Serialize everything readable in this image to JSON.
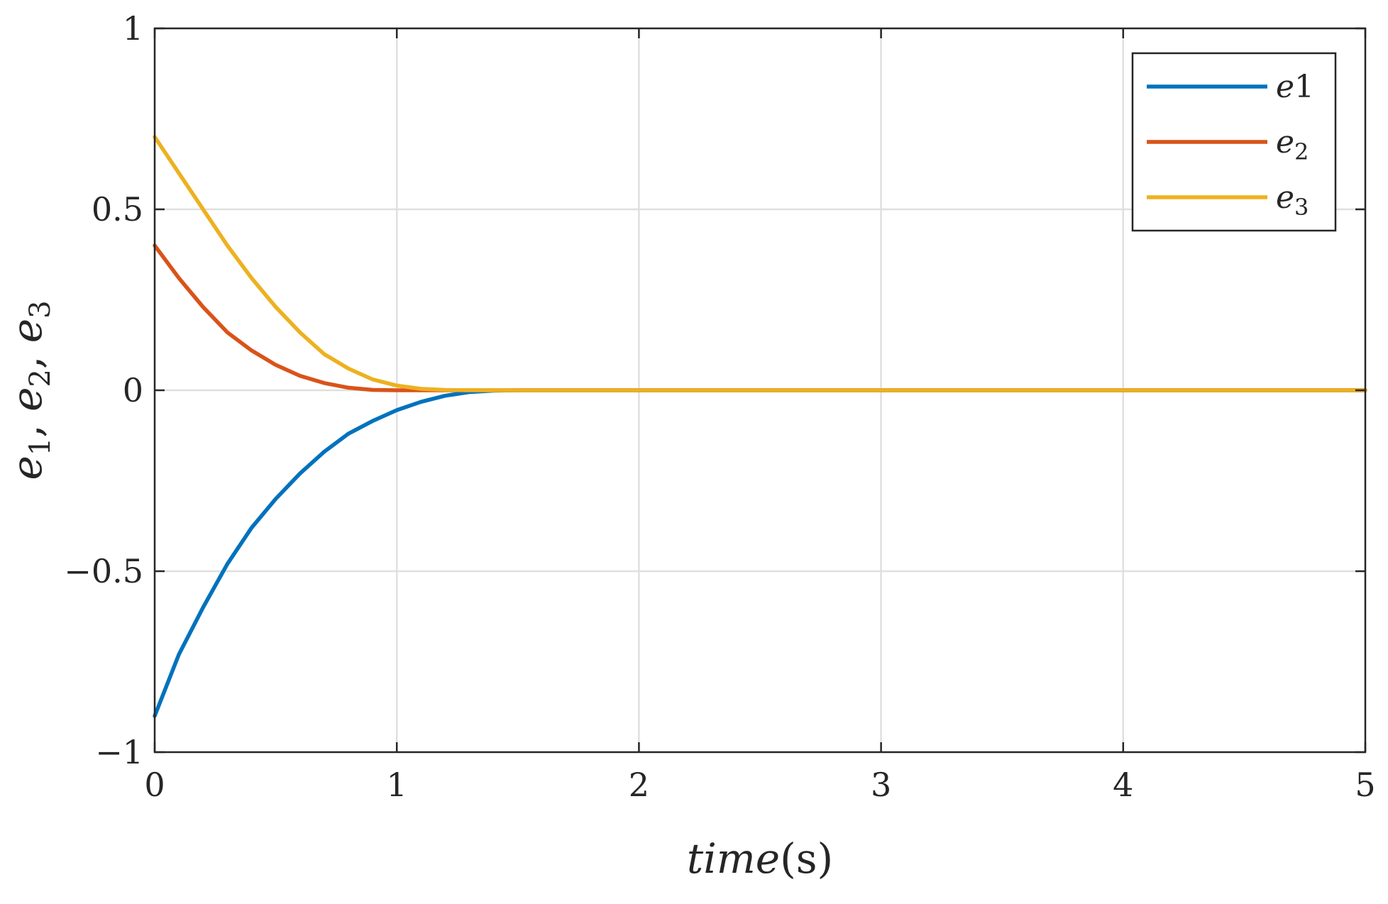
{
  "chart_data": {
    "type": "line",
    "xlabel": "time(s)",
    "xlabel_parts": {
      "italic": "time",
      "unit": "(s)"
    },
    "ylabel": "e1, e2, e3",
    "ylabel_parts": [
      {
        "base": "e",
        "sub": "1",
        "sep": ", "
      },
      {
        "base": "e",
        "sub": "2",
        "sep": ", "
      },
      {
        "base": "e",
        "sub": "3",
        "sep": ""
      }
    ],
    "xlim": [
      0,
      5
    ],
    "ylim": [
      -1,
      1
    ],
    "xticks": [
      0,
      1,
      2,
      3,
      4,
      5
    ],
    "xtick_labels": [
      "0",
      "1",
      "2",
      "3",
      "4",
      "5"
    ],
    "yticks": [
      -1,
      -0.5,
      0,
      0.5,
      1
    ],
    "ytick_labels": [
      "−1",
      "−0.5",
      "0",
      "0.5",
      "1"
    ],
    "grid": true,
    "legend_position": "top-right",
    "series": [
      {
        "name": "e1",
        "legend_label": {
          "base": "e",
          "rest": "1",
          "subscript": false
        },
        "color": "#0072BD",
        "x": [
          0,
          0.1,
          0.2,
          0.3,
          0.4,
          0.5,
          0.6,
          0.7,
          0.8,
          0.9,
          1.0,
          1.1,
          1.2,
          1.3,
          1.4,
          1.5,
          2,
          3,
          4,
          5
        ],
        "y": [
          -0.9,
          -0.73,
          -0.6,
          -0.48,
          -0.38,
          -0.3,
          -0.23,
          -0.17,
          -0.12,
          -0.085,
          -0.055,
          -0.032,
          -0.015,
          -0.005,
          -0.001,
          0,
          0,
          0,
          0,
          0
        ]
      },
      {
        "name": "e2",
        "legend_label": {
          "base": "e",
          "rest": "2",
          "subscript": true
        },
        "color": "#D95319",
        "x": [
          0,
          0.1,
          0.2,
          0.3,
          0.4,
          0.5,
          0.6,
          0.7,
          0.8,
          0.9,
          1.0,
          1.5,
          2,
          3,
          4,
          5
        ],
        "y": [
          0.4,
          0.31,
          0.23,
          0.16,
          0.11,
          0.07,
          0.04,
          0.02,
          0.007,
          0.001,
          0,
          0,
          0,
          0,
          0,
          0
        ]
      },
      {
        "name": "e3",
        "legend_label": {
          "base": "e",
          "rest": "3",
          "subscript": true
        },
        "color": "#EDB120",
        "x": [
          0,
          0.1,
          0.2,
          0.3,
          0.4,
          0.5,
          0.6,
          0.7,
          0.8,
          0.9,
          1.0,
          1.1,
          1.2,
          1.3,
          1.5,
          2,
          3,
          4,
          5
        ],
        "y": [
          0.7,
          0.6,
          0.5,
          0.4,
          0.31,
          0.23,
          0.16,
          0.1,
          0.06,
          0.03,
          0.013,
          0.004,
          0.001,
          0,
          0,
          0,
          0,
          0,
          0
        ]
      }
    ]
  }
}
